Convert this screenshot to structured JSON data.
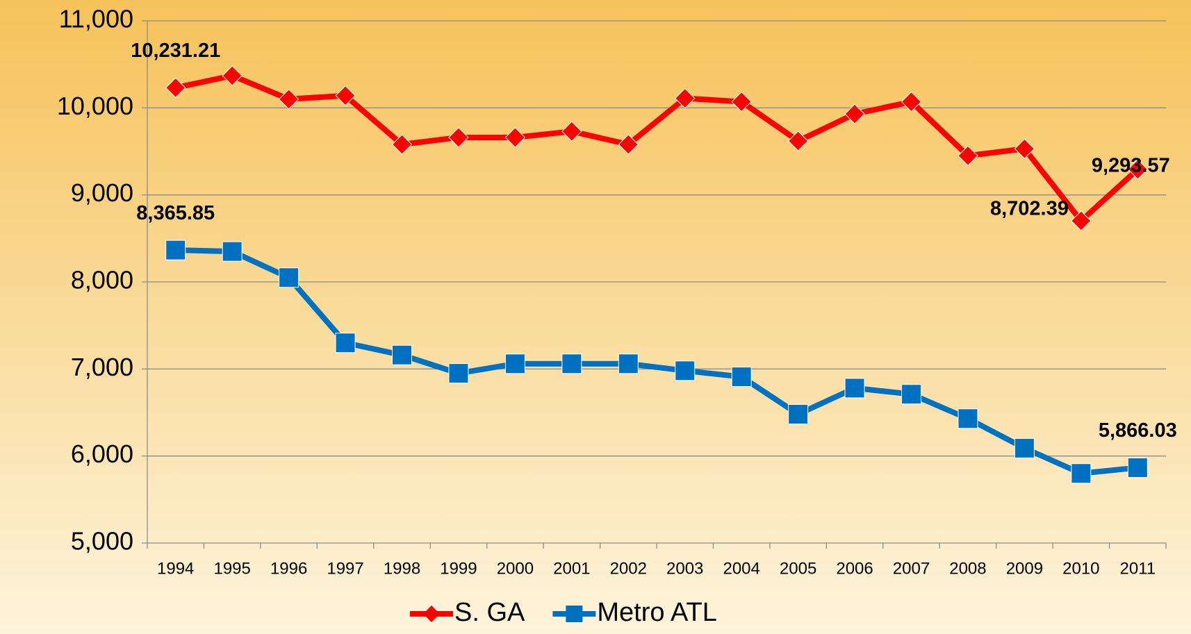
{
  "chart_data": {
    "type": "line",
    "categories": [
      "1994",
      "1995",
      "1996",
      "1997",
      "1998",
      "1999",
      "2000",
      "2001",
      "2002",
      "2003",
      "2004",
      "2005",
      "2006",
      "2007",
      "2008",
      "2009",
      "2010",
      "2011"
    ],
    "series": [
      {
        "name": "S. GA",
        "color": "#ff0000",
        "marker": "diamond",
        "values": [
          10231.21,
          10370,
          10100,
          10140,
          9580,
          9660,
          9660,
          9730,
          9580,
          10110,
          10070,
          9620,
          9930,
          10070,
          9450,
          9530,
          8702.39,
          9293.57
        ],
        "value_labels": [
          "10,231.21",
          null,
          null,
          null,
          null,
          null,
          null,
          null,
          null,
          null,
          null,
          null,
          null,
          null,
          null,
          null,
          "8,702.39",
          "9,293.57"
        ]
      },
      {
        "name": "Metro ATL",
        "color": "#0070c0",
        "marker": "square",
        "values": [
          8365.85,
          8350,
          8050,
          7300,
          7160,
          6950,
          7060,
          7060,
          7060,
          6980,
          6910,
          6480,
          6780,
          6710,
          6430,
          6090,
          5800,
          5866.03
        ],
        "value_labels": [
          "8,365.85",
          null,
          null,
          null,
          null,
          null,
          null,
          null,
          null,
          null,
          null,
          null,
          null,
          null,
          null,
          null,
          null,
          "5,866.03"
        ]
      }
    ],
    "ylim": [
      5000,
      11000
    ],
    "yticks": [
      {
        "value": 5000,
        "label": "5,000"
      },
      {
        "value": 6000,
        "label": "6,000"
      },
      {
        "value": 7000,
        "label": "7,000"
      },
      {
        "value": 8000,
        "label": "8,000"
      },
      {
        "value": 9000,
        "label": "9,000"
      },
      {
        "value": 10000,
        "label": "10,000"
      },
      {
        "value": 11000,
        "label": "11,000"
      }
    ],
    "grid": true,
    "legend": "bottom"
  }
}
